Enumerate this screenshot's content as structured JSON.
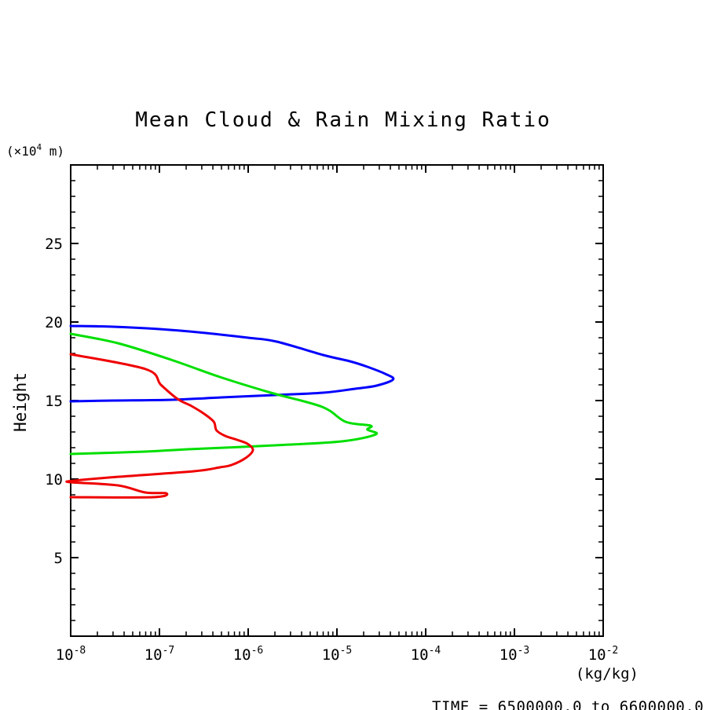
{
  "chart_data": {
    "type": "line",
    "title": "Mean Cloud & Rain Mixing Ratio",
    "grid": false,
    "legend": "none",
    "y_axis": {
      "title": "Height",
      "unit_label": {
        "prefix": "(×10",
        "sup": "4",
        "suffix": " m)"
      },
      "range": [
        0,
        30
      ],
      "major_ticks": [
        5,
        10,
        15,
        20,
        25
      ],
      "minor_tick_step": 1
    },
    "x_axis": {
      "unit_label": "(kg/kg)",
      "scale": "log",
      "range": [
        1e-08,
        0.01
      ],
      "tick_labels": [
        {
          "base": "10",
          "exp": "-8"
        },
        {
          "base": "10",
          "exp": "-7"
        },
        {
          "base": "10",
          "exp": "-6"
        },
        {
          "base": "10",
          "exp": "-5"
        },
        {
          "base": "10",
          "exp": "-4"
        },
        {
          "base": "10",
          "exp": "-3"
        },
        {
          "base": "10",
          "exp": "-2"
        }
      ]
    },
    "series": [
      {
        "name": "blue",
        "color": "#0000ff",
        "points_format": [
          "mixing_ratio_kg_per_kg",
          "height_1e4_m"
        ],
        "points": [
          [
            1e-08,
            19.75
          ],
          [
            3e-08,
            19.7
          ],
          [
            1e-07,
            19.55
          ],
          [
            2.7e-07,
            19.35
          ],
          [
            1e-06,
            19.0
          ],
          [
            2.1e-06,
            18.75
          ],
          [
            7e-06,
            17.9
          ],
          [
            1.4e-05,
            17.5
          ],
          [
            2.2e-05,
            17.15
          ],
          [
            3.5e-05,
            16.7
          ],
          [
            4.3e-05,
            16.35
          ],
          [
            2.8e-05,
            15.95
          ],
          [
            1.6e-05,
            15.75
          ],
          [
            7e-06,
            15.5
          ],
          [
            2e-06,
            15.35
          ],
          [
            5e-07,
            15.2
          ],
          [
            1.4e-07,
            15.05
          ],
          [
            3e-08,
            15.0
          ],
          [
            1e-08,
            14.95
          ]
        ]
      },
      {
        "name": "green",
        "color": "#00df00",
        "points_format": [
          "mixing_ratio_kg_per_kg",
          "height_1e4_m"
        ],
        "points": [
          [
            1e-08,
            19.25
          ],
          [
            3.4e-08,
            18.65
          ],
          [
            1.35e-07,
            17.6
          ],
          [
            4.8e-07,
            16.5
          ],
          [
            1.8e-06,
            15.5
          ],
          [
            6.8e-06,
            14.6
          ],
          [
            1.25e-05,
            13.65
          ],
          [
            2.4e-05,
            13.4
          ],
          [
            2.2e-05,
            13.15
          ],
          [
            2.75e-05,
            12.85
          ],
          [
            1.13e-05,
            12.4
          ],
          [
            2e-06,
            12.15
          ],
          [
            2.1e-07,
            11.9
          ],
          [
            6.9e-08,
            11.75
          ],
          [
            1e-08,
            11.6
          ]
        ]
      },
      {
        "name": "red",
        "color": "#ef0000",
        "points_format": [
          "mixing_ratio_kg_per_kg",
          "height_1e4_m"
        ],
        "points": [
          [
            1e-08,
            17.95
          ],
          [
            7e-08,
            17.0
          ],
          [
            1.04e-07,
            16.0
          ],
          [
            1.6e-07,
            15.1
          ],
          [
            2.3e-07,
            14.65
          ],
          [
            3.2e-07,
            14.15
          ],
          [
            4.1e-07,
            13.65
          ],
          [
            4.4e-07,
            13.1
          ],
          [
            5.5e-07,
            12.75
          ],
          [
            7.5e-07,
            12.5
          ],
          [
            9.8e-07,
            12.25
          ],
          [
            1.13e-06,
            11.85
          ],
          [
            9.4e-07,
            11.35
          ],
          [
            6.5e-07,
            10.9
          ],
          [
            4.8e-07,
            10.75
          ],
          [
            2.45e-07,
            10.5
          ],
          [
            3.5e-08,
            10.15
          ],
          [
            1.1e-08,
            9.9
          ],
          [
            1e-08,
            9.8
          ],
          [
            3.4e-08,
            9.6
          ],
          [
            6.9e-08,
            9.15
          ],
          [
            1.2e-07,
            9.1
          ],
          [
            8.5e-08,
            8.85
          ],
          [
            1e-08,
            8.85
          ]
        ]
      }
    ],
    "footer": {
      "time_label": "TIME = 6500000.0 to 6600000.0"
    }
  },
  "colors": {
    "background": "#ffffff",
    "axis": "#000000",
    "blue_series": "#0000ff",
    "green_series": "#00df00",
    "red_series": "#ef0000"
  }
}
